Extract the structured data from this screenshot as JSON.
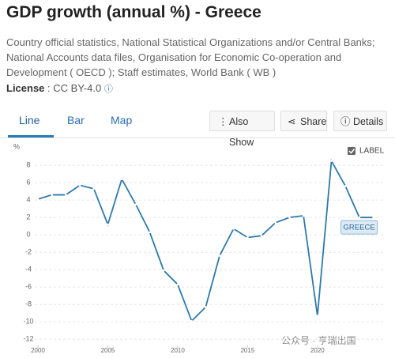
{
  "header": {
    "title": "GDP growth (annual %) - Greece",
    "source": "Country official statistics, National Statistical Organizations and/or Central Banks; National Accounts data files, Organisation for Economic Co-operation and Development ( OECD ); Staff estimates, World Bank ( WB )",
    "license_label": "License",
    "license_value": ": CC BY-4.0"
  },
  "tabs": [
    "Line",
    "Bar",
    "Map"
  ],
  "buttons": [
    "Also Show",
    "Share",
    "Details"
  ],
  "watermark": "公众号 · 亨瑞出国",
  "chart_data": {
    "type": "line",
    "ylabel": "%",
    "label_toggle": "LABEL",
    "show_labels": true,
    "x": [
      2000,
      2001,
      2002,
      2003,
      2004,
      2005,
      2006,
      2007,
      2008,
      2009,
      2010,
      2011,
      2012,
      2013,
      2014,
      2015,
      2016,
      2017,
      2018,
      2019,
      2020,
      2021,
      2022,
      2023,
      2024
    ],
    "series": [
      {
        "name": "GREECE",
        "color": "#2f7aa8",
        "values": [
          4.1,
          4.6,
          4.6,
          5.7,
          5.3,
          1.2,
          6.4,
          3.5,
          0.3,
          -4.1,
          -5.7,
          -9.9,
          -8.3,
          -2.4,
          0.7,
          -0.3,
          -0.1,
          1.4,
          2.0,
          2.2,
          -9.3,
          8.5,
          5.6,
          2.0,
          2.0
        ]
      }
    ],
    "xlim": [
      2000,
      2024.7
    ],
    "ylim": [
      -12.7,
      9.1
    ],
    "xticks": [
      2000,
      2005,
      2010,
      2015,
      2020
    ],
    "yticks": [
      -12,
      -10,
      -8,
      -6,
      -4,
      -2,
      0,
      2,
      4,
      6,
      8
    ],
    "grid": true
  }
}
